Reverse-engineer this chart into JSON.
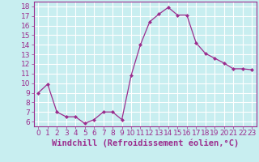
{
  "x": [
    0,
    1,
    2,
    3,
    4,
    5,
    6,
    7,
    8,
    9,
    10,
    11,
    12,
    13,
    14,
    15,
    16,
    17,
    18,
    19,
    20,
    21,
    22,
    23
  ],
  "y": [
    9,
    9.9,
    7,
    6.5,
    6.5,
    5.8,
    6.2,
    7,
    7,
    6.2,
    10.8,
    14,
    16.4,
    17.2,
    17.9,
    17.1,
    17.1,
    14.2,
    13.1,
    12.6,
    12.1,
    11.5,
    11.5,
    11.4
  ],
  "line_color": "#9b2d8e",
  "marker": "D",
  "marker_size": 2,
  "background_color": "#c8eef0",
  "grid_color": "#ffffff",
  "xlabel": "Windchill (Refroidissement éolien,°C)",
  "ylim": [
    5.5,
    18.5
  ],
  "xlim": [
    -0.5,
    23.5
  ],
  "yticks": [
    6,
    7,
    8,
    9,
    10,
    11,
    12,
    13,
    14,
    15,
    16,
    17,
    18
  ],
  "xticks": [
    0,
    1,
    2,
    3,
    4,
    5,
    6,
    7,
    8,
    9,
    10,
    11,
    12,
    13,
    14,
    15,
    16,
    17,
    18,
    19,
    20,
    21,
    22,
    23
  ],
  "tick_fontsize": 6.5,
  "xlabel_fontsize": 7.5,
  "tick_color": "#9b2d8e",
  "spine_color": "#9b2d8e"
}
